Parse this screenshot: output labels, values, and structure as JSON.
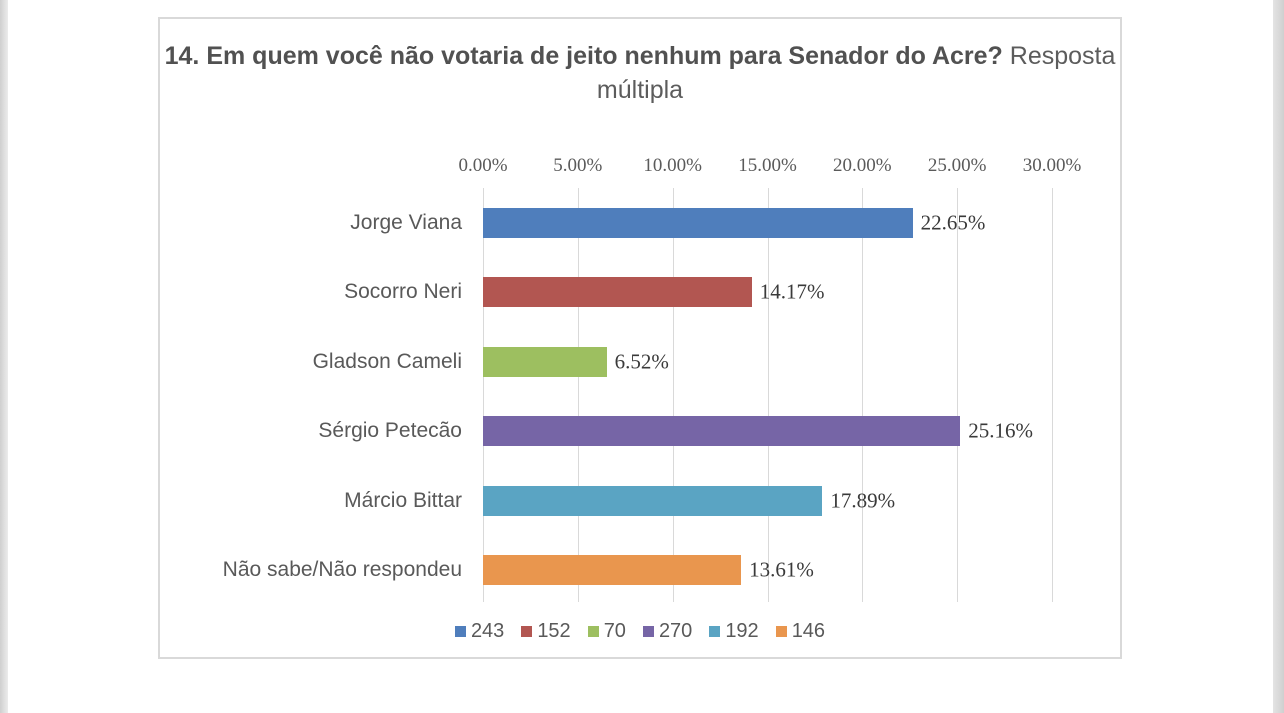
{
  "page": {
    "background": "#ffffff",
    "frame_border_color": "#d9d9d9",
    "edge_strip_color": "#d6d6d6"
  },
  "title": {
    "bold_part": "14. Em quem você não votaria de jeito nenhum para Senador do Acre?",
    "regular_part": " Resposta múltipla"
  },
  "chart_data": {
    "type": "bar",
    "orientation": "horizontal",
    "title": "14. Em quem você não votaria de jeito nenhum para Senador do Acre? Resposta múltipla",
    "categories": [
      "Jorge Viana",
      "Socorro Neri",
      "Gladson Cameli",
      "Sérgio Petecão",
      "Márcio Bittar",
      "Não sabe/Não respondeu"
    ],
    "values": [
      22.65,
      14.17,
      6.52,
      25.16,
      17.89,
      13.61
    ],
    "value_labels": [
      "22.65%",
      "14.17%",
      "6.52%",
      "25.16%",
      "17.89%",
      "13.61%"
    ],
    "counts": [
      243,
      152,
      70,
      270,
      192,
      146
    ],
    "bar_colors": [
      "#4F7EBC",
      "#B25651",
      "#9DBF60",
      "#7665A6",
      "#5AA4C3",
      "#E9964E"
    ],
    "xlabel": "",
    "ylabel": "",
    "x_axis": {
      "min": 0,
      "max": 30,
      "tick_values": [
        0,
        5,
        10,
        15,
        20,
        25,
        30
      ],
      "tick_labels": [
        "0.00%",
        "5.00%",
        "10.00%",
        "15.00%",
        "20.00%",
        "25.00%",
        "30.00%"
      ]
    },
    "grid": "vertical",
    "legend": {
      "position": "bottom",
      "entries": [
        {
          "label": "243",
          "color": "#4F7EBC"
        },
        {
          "label": "152",
          "color": "#B25651"
        },
        {
          "label": "70",
          "color": "#9DBF60"
        },
        {
          "label": "270",
          "color": "#7665A6"
        },
        {
          "label": "192",
          "color": "#5AA4C3"
        },
        {
          "label": "146",
          "color": "#E9964E"
        }
      ]
    }
  }
}
